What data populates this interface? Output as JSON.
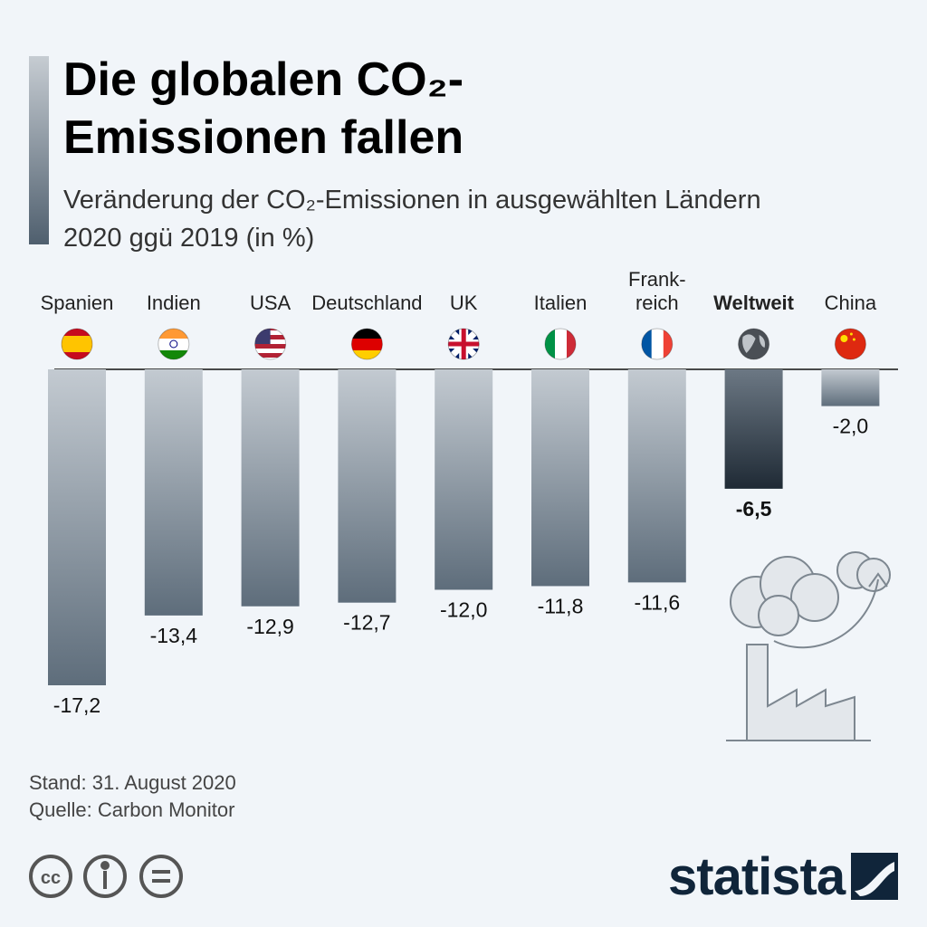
{
  "chart_data": {
    "type": "bar",
    "title": "Die globalen CO₂-Emissionen fallen",
    "subtitle": "Veränderung der CO₂-Emissionen in ausgewählten Ländern 2020 ggü 2019 (in %)",
    "categories": [
      "Spanien",
      "Indien",
      "USA",
      "Deutschland",
      "UK",
      "Italien",
      "Frank-\nreich",
      "Weltweit",
      "China"
    ],
    "values": [
      -17.2,
      -13.4,
      -12.9,
      -12.7,
      -12.0,
      -11.8,
      -11.6,
      -6.5,
      -2.0
    ],
    "value_labels": [
      "-17,2",
      "-13,4",
      "-12,9",
      "-12,7",
      "-12,0",
      "-11,8",
      "-11,6",
      "-6,5",
      "-2,0"
    ],
    "colors": [
      [
        "#c3cad1",
        "#5e6d7b"
      ],
      [
        "#c3cad1",
        "#5e6d7b"
      ],
      [
        "#c3cad1",
        "#5e6d7b"
      ],
      [
        "#c3cad1",
        "#5e6d7b"
      ],
      [
        "#c3cad1",
        "#5e6d7b"
      ],
      [
        "#c3cad1",
        "#5e6d7b"
      ],
      [
        "#c3cad1",
        "#5e6d7b"
      ],
      [
        "#6c7884",
        "#1f2a35"
      ],
      [
        "#c3cad1",
        "#5e6d7b"
      ]
    ],
    "emphasis": [
      false,
      false,
      false,
      false,
      false,
      false,
      false,
      true,
      false
    ],
    "notes": [
      "Stand: 31. August 2020",
      "Quelle: Carbon Monitor"
    ],
    "brand": "statista"
  }
}
